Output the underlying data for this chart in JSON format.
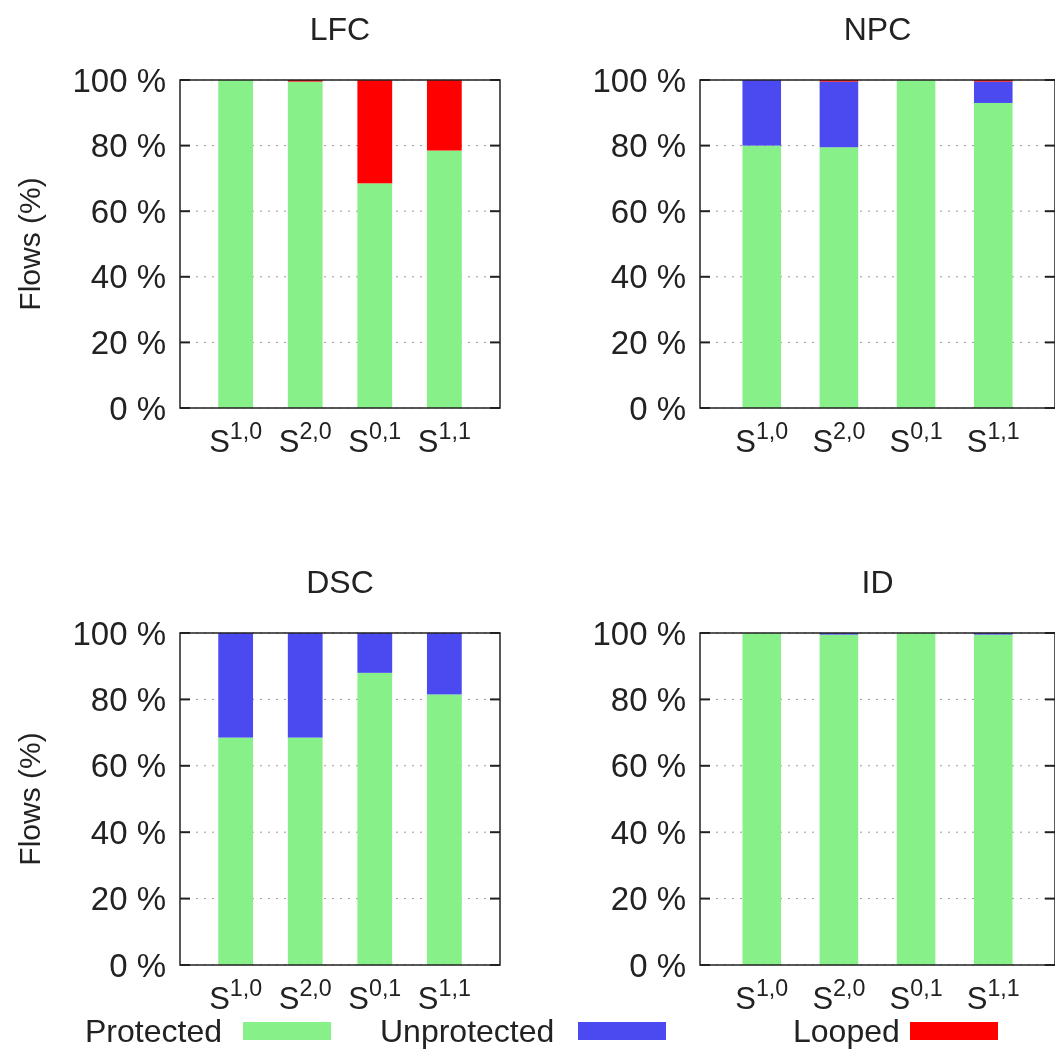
{
  "chart_data": [
    {
      "type": "bar",
      "title": "LFC",
      "ylabel": "Flows (%)",
      "legend": "bottom",
      "categories": [
        "S$^{1,0}$",
        "S$^{2,0}$",
        "S$^{0,1}$",
        "S$^{1,1}$"
      ],
      "stacked": true,
      "ylim": [
        0,
        100
      ],
      "yticks": [
        {
          "value": 0,
          "label": "0 %"
        },
        {
          "value": 20,
          "label": "20 %"
        },
        {
          "value": 40,
          "label": "40 %"
        },
        {
          "value": 60,
          "label": "60 %"
        },
        {
          "value": 80,
          "label": "80 %"
        },
        {
          "value": 100,
          "label": "100 %"
        }
      ],
      "grid": "y",
      "series": [
        {
          "name": "Protected",
          "color": "#88f088",
          "values": [
            100,
            99.5,
            68.5,
            78.5
          ]
        },
        {
          "name": "Looped",
          "color": "#ff0000",
          "values": [
            null,
            0.5,
            31.5,
            21.5
          ]
        }
      ]
    },
    {
      "type": "bar",
      "title": "NPC",
      "legend": "bottom",
      "categories": [
        "S$^{1,0}$",
        "S$^{2,0}$",
        "S$^{0,1}$",
        "S$^{1,1}$"
      ],
      "stacked": true,
      "ylim": [
        0,
        100
      ],
      "yticks": [
        {
          "value": 0,
          "label": "0 %"
        },
        {
          "value": 20,
          "label": "20 %"
        },
        {
          "value": 40,
          "label": "40 %"
        },
        {
          "value": 60,
          "label": "60 %"
        },
        {
          "value": 80,
          "label": "80 %"
        },
        {
          "value": 100,
          "label": "100 %"
        }
      ],
      "grid": "y",
      "series": [
        {
          "name": "Protected",
          "color": "#88f088",
          "values": [
            80,
            79.5,
            100,
            93
          ]
        },
        {
          "name": "Unprotected",
          "color": "#4a4af0",
          "values": [
            20,
            20,
            null,
            6.5
          ]
        },
        {
          "name": "Looped",
          "color": "#ff0000",
          "values": [
            null,
            0.5,
            null,
            0.5
          ]
        }
      ]
    },
    {
      "type": "bar",
      "title": "DSC",
      "ylabel": "Flows (%)",
      "legend": "bottom",
      "categories": [
        "S$^{1,0}$",
        "S$^{2,0}$",
        "S$^{0,1}$",
        "S$^{1,1}$"
      ],
      "stacked": true,
      "ylim": [
        0,
        100
      ],
      "yticks": [
        {
          "value": 0,
          "label": "0 %"
        },
        {
          "value": 20,
          "label": "20 %"
        },
        {
          "value": 40,
          "label": "40 %"
        },
        {
          "value": 60,
          "label": "60 %"
        },
        {
          "value": 80,
          "label": "80 %"
        },
        {
          "value": 100,
          "label": "100 %"
        }
      ],
      "grid": "y",
      "series": [
        {
          "name": "Protected",
          "color": "#88f088",
          "values": [
            68.5,
            68.5,
            88,
            81.5
          ]
        },
        {
          "name": "Unprotected",
          "color": "#4a4af0",
          "values": [
            31.5,
            31.5,
            12,
            18.5
          ]
        }
      ]
    },
    {
      "type": "bar",
      "title": "ID",
      "categories": [
        "S$^{1,0}$",
        "S$^{2,0}$",
        "S$^{0,1}$",
        "S$^{1,1}$"
      ],
      "stacked": true,
      "ylim": [
        0,
        100
      ],
      "yticks": [
        {
          "value": 0,
          "label": "0 %"
        },
        {
          "value": 20,
          "label": "20 %"
        },
        {
          "value": 40,
          "label": "40 %"
        },
        {
          "value": 60,
          "label": "60 %"
        },
        {
          "value": 80,
          "label": "80 %"
        },
        {
          "value": 100,
          "label": "100 %"
        }
      ],
      "grid": "y",
      "legend": "bottom",
      "series": [
        {
          "name": "Protected",
          "color": "#88f088",
          "values": [
            100,
            99.5,
            100,
            99.5
          ]
        },
        {
          "name": "Unprotected",
          "color": "#4a4af0",
          "values": [
            null,
            0.5,
            null,
            0.5
          ]
        }
      ]
    }
  ]
}
